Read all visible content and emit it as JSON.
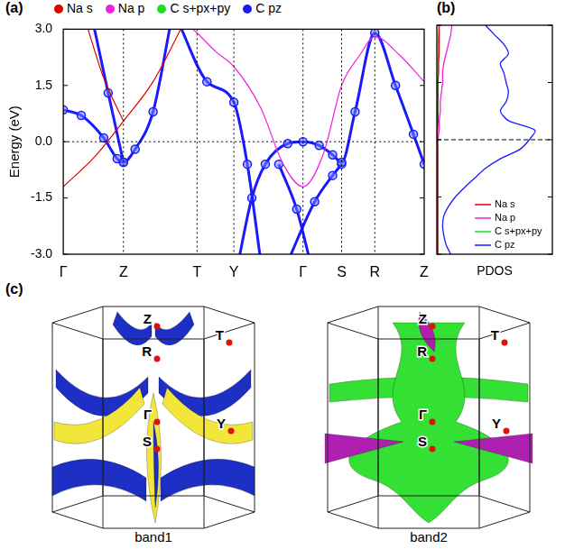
{
  "chart_data": [
    {
      "panel_label": "(a)",
      "type": "line",
      "y_label": "Energy (eV)",
      "xlim": [
        0,
        4.02
      ],
      "xticks": [
        {
          "value": 0,
          "label": "Γ"
        },
        {
          "value": 0.67,
          "label": "Z"
        },
        {
          "value": 1.49,
          "label": "T"
        },
        {
          "value": 1.9,
          "label": "Y"
        },
        {
          "value": 2.67,
          "label": "Γ"
        },
        {
          "value": 3.1,
          "label": "S"
        },
        {
          "value": 3.47,
          "label": "R"
        },
        {
          "value": 4.02,
          "label": "Z"
        }
      ],
      "ylim": [
        -3,
        3
      ],
      "yticks": [
        {
          "value": -3,
          "label": "-3.0"
        },
        {
          "value": -1.5,
          "label": "-1.5"
        },
        {
          "value": 0,
          "label": "0.0"
        },
        {
          "value": 1.5,
          "label": "1.5"
        },
        {
          "value": 3,
          "label": "3.0"
        }
      ],
      "hlines": [
        0
      ],
      "grid": true,
      "legend": "top",
      "series": [
        {
          "name": "Na s",
          "color": "#e00000",
          "marker": "none",
          "line_style": "solid",
          "bands": [
            [
              [
                0,
                -1.2
              ],
              [
                0.35,
                -0.4
              ],
              [
                0.67,
                0.55
              ],
              [
                1.0,
                1.6
              ],
              [
                1.35,
                3.2
              ]
            ],
            [
              [
                0.25,
                3.2
              ],
              [
                0.45,
                1.7
              ],
              [
                0.67,
                0.55
              ]
            ]
          ]
        },
        {
          "name": "Na p",
          "color": "#ee22dd",
          "marker": "none",
          "line_style": "solid",
          "bands": [
            [
              [
                1.35,
                3.2
              ],
              [
                1.49,
                2.9
              ],
              [
                1.7,
                2.4
              ],
              [
                1.9,
                2.0
              ],
              [
                2.2,
                0.9
              ],
              [
                2.45,
                -0.6
              ],
              [
                2.67,
                -1.2
              ],
              [
                2.9,
                -0.3
              ],
              [
                3.1,
                1.5
              ],
              [
                3.3,
                2.3
              ],
              [
                3.47,
                2.8
              ],
              [
                3.75,
                2.3
              ],
              [
                4.02,
                1.6
              ]
            ]
          ]
        },
        {
          "name": "C s+px+py",
          "color": "#22dd22",
          "marker": "none",
          "line_style": "solid",
          "bands": []
        },
        {
          "name": "C pz",
          "color": "#1a1aff",
          "marker": "circle",
          "line_style": "solid",
          "bands": [
            [
              [
                0,
                0.85
              ],
              [
                0.2,
                0.7
              ],
              [
                0.45,
                0.1
              ],
              [
                0.6,
                -0.45
              ],
              [
                0.67,
                -0.55
              ],
              [
                0.8,
                -0.2
              ],
              [
                1.0,
                0.8
              ],
              [
                1.2,
                3.2
              ]
            ],
            [
              [
                0.33,
                3.2
              ],
              [
                0.5,
                1.3
              ],
              [
                0.67,
                -0.55
              ]
            ],
            [
              [
                1.28,
                3.2
              ],
              [
                1.6,
                1.6
              ],
              [
                1.9,
                1.05
              ],
              [
                2.05,
                -0.6
              ],
              [
                2.2,
                -3.2
              ]
            ],
            [
              [
                1.95,
                -3.2
              ],
              [
                2.1,
                -1.5
              ],
              [
                2.25,
                -0.6
              ],
              [
                2.5,
                -0.05
              ],
              [
                2.67,
                0.0
              ],
              [
                2.85,
                -0.1
              ],
              [
                3.0,
                -0.35
              ],
              [
                3.1,
                -0.55
              ],
              [
                3.25,
                0.8
              ],
              [
                3.47,
                2.9
              ],
              [
                3.7,
                1.5
              ],
              [
                3.9,
                0.2
              ],
              [
                4.02,
                -0.6
              ]
            ],
            [
              [
                2.4,
                -0.6
              ],
              [
                2.6,
                -1.8
              ],
              [
                2.75,
                -3.2
              ]
            ],
            [
              [
                2.5,
                -3.2
              ],
              [
                2.8,
                -1.6
              ],
              [
                3.0,
                -0.9
              ],
              [
                3.1,
                -0.6
              ]
            ]
          ]
        }
      ]
    },
    {
      "panel_label": "(b)",
      "type": "line",
      "orientation": "horizontal",
      "x_label": "PDOS",
      "tick_labels": false,
      "xlim": [
        0,
        1
      ],
      "ylim": [
        -3,
        3
      ],
      "yticks": [
        {
          "value": -3,
          "label": "-3.0"
        },
        {
          "value": -1.5,
          "label": "-1.5"
        },
        {
          "value": 0,
          "label": "0.0"
        },
        {
          "value": 1.5,
          "label": "1.5"
        },
        {
          "value": 3,
          "label": "3.0"
        }
      ],
      "hlines": [
        0
      ],
      "legend": "lower right",
      "y": [
        -3,
        -2.75,
        -2.5,
        -2.25,
        -2,
        -1.75,
        -1.5,
        -1.25,
        -1,
        -0.75,
        -0.5,
        -0.25,
        0,
        0.25,
        0.5,
        0.75,
        1,
        1.25,
        1.5,
        1.75,
        2,
        2.25,
        2.5,
        2.75,
        3
      ],
      "series": [
        {
          "name": "Na s",
          "color": "#e00000",
          "values": [
            0.005,
            0.005,
            0.005,
            0.005,
            0.005,
            0.005,
            0.005,
            0.005,
            0.005,
            0.005,
            0.005,
            0.005,
            0.005,
            0.005,
            0.01,
            0.01,
            0.01,
            0.01,
            0.01,
            0.015,
            0.015,
            0.02,
            0.02,
            0.02,
            0.02
          ]
        },
        {
          "name": "Na p",
          "color": "#ee22dd",
          "values": [
            0.01,
            0.01,
            0.01,
            0.01,
            0.01,
            0.01,
            0.01,
            0.01,
            0.01,
            0.01,
            0.01,
            0.01,
            0.01,
            0.02,
            0.02,
            0.03,
            0.03,
            0.04,
            0.05,
            0.05,
            0.06,
            0.08,
            0.1,
            0.12,
            0.13
          ]
        },
        {
          "name": "C s+px+py",
          "color": "#22dd22",
          "values": [
            0.005,
            0.005,
            0.005,
            0.005,
            0.005,
            0.005,
            0.005,
            0.005,
            0.005,
            0.005,
            0.005,
            0.005,
            0.005,
            0.005,
            0.005,
            0.005,
            0.005,
            0.005,
            0.005,
            0.01,
            0.01,
            0.01,
            0.01,
            0.015,
            0.02
          ]
        },
        {
          "name": "C pz",
          "color": "#1a1aff",
          "values": [
            0.12,
            0.08,
            0.06,
            0.05,
            0.06,
            0.1,
            0.16,
            0.24,
            0.33,
            0.42,
            0.55,
            0.72,
            0.8,
            0.85,
            0.62,
            0.55,
            0.6,
            0.62,
            0.6,
            0.58,
            0.55,
            0.62,
            0.58,
            0.5,
            0.42
          ]
        }
      ]
    }
  ],
  "fermi_surfaces": {
    "panel_label": "(c)",
    "surfaces": [
      {
        "caption": "band1",
        "points": [
          "Z",
          "R",
          "T",
          "Γ",
          "Y",
          "S"
        ],
        "colors": [
          "#f2e63a",
          "#1d2fc4"
        ]
      },
      {
        "caption": "band2",
        "points": [
          "Z",
          "R",
          "T",
          "Γ",
          "Y",
          "S"
        ],
        "colors": [
          "#33e033",
          "#b020b0"
        ]
      }
    ]
  }
}
